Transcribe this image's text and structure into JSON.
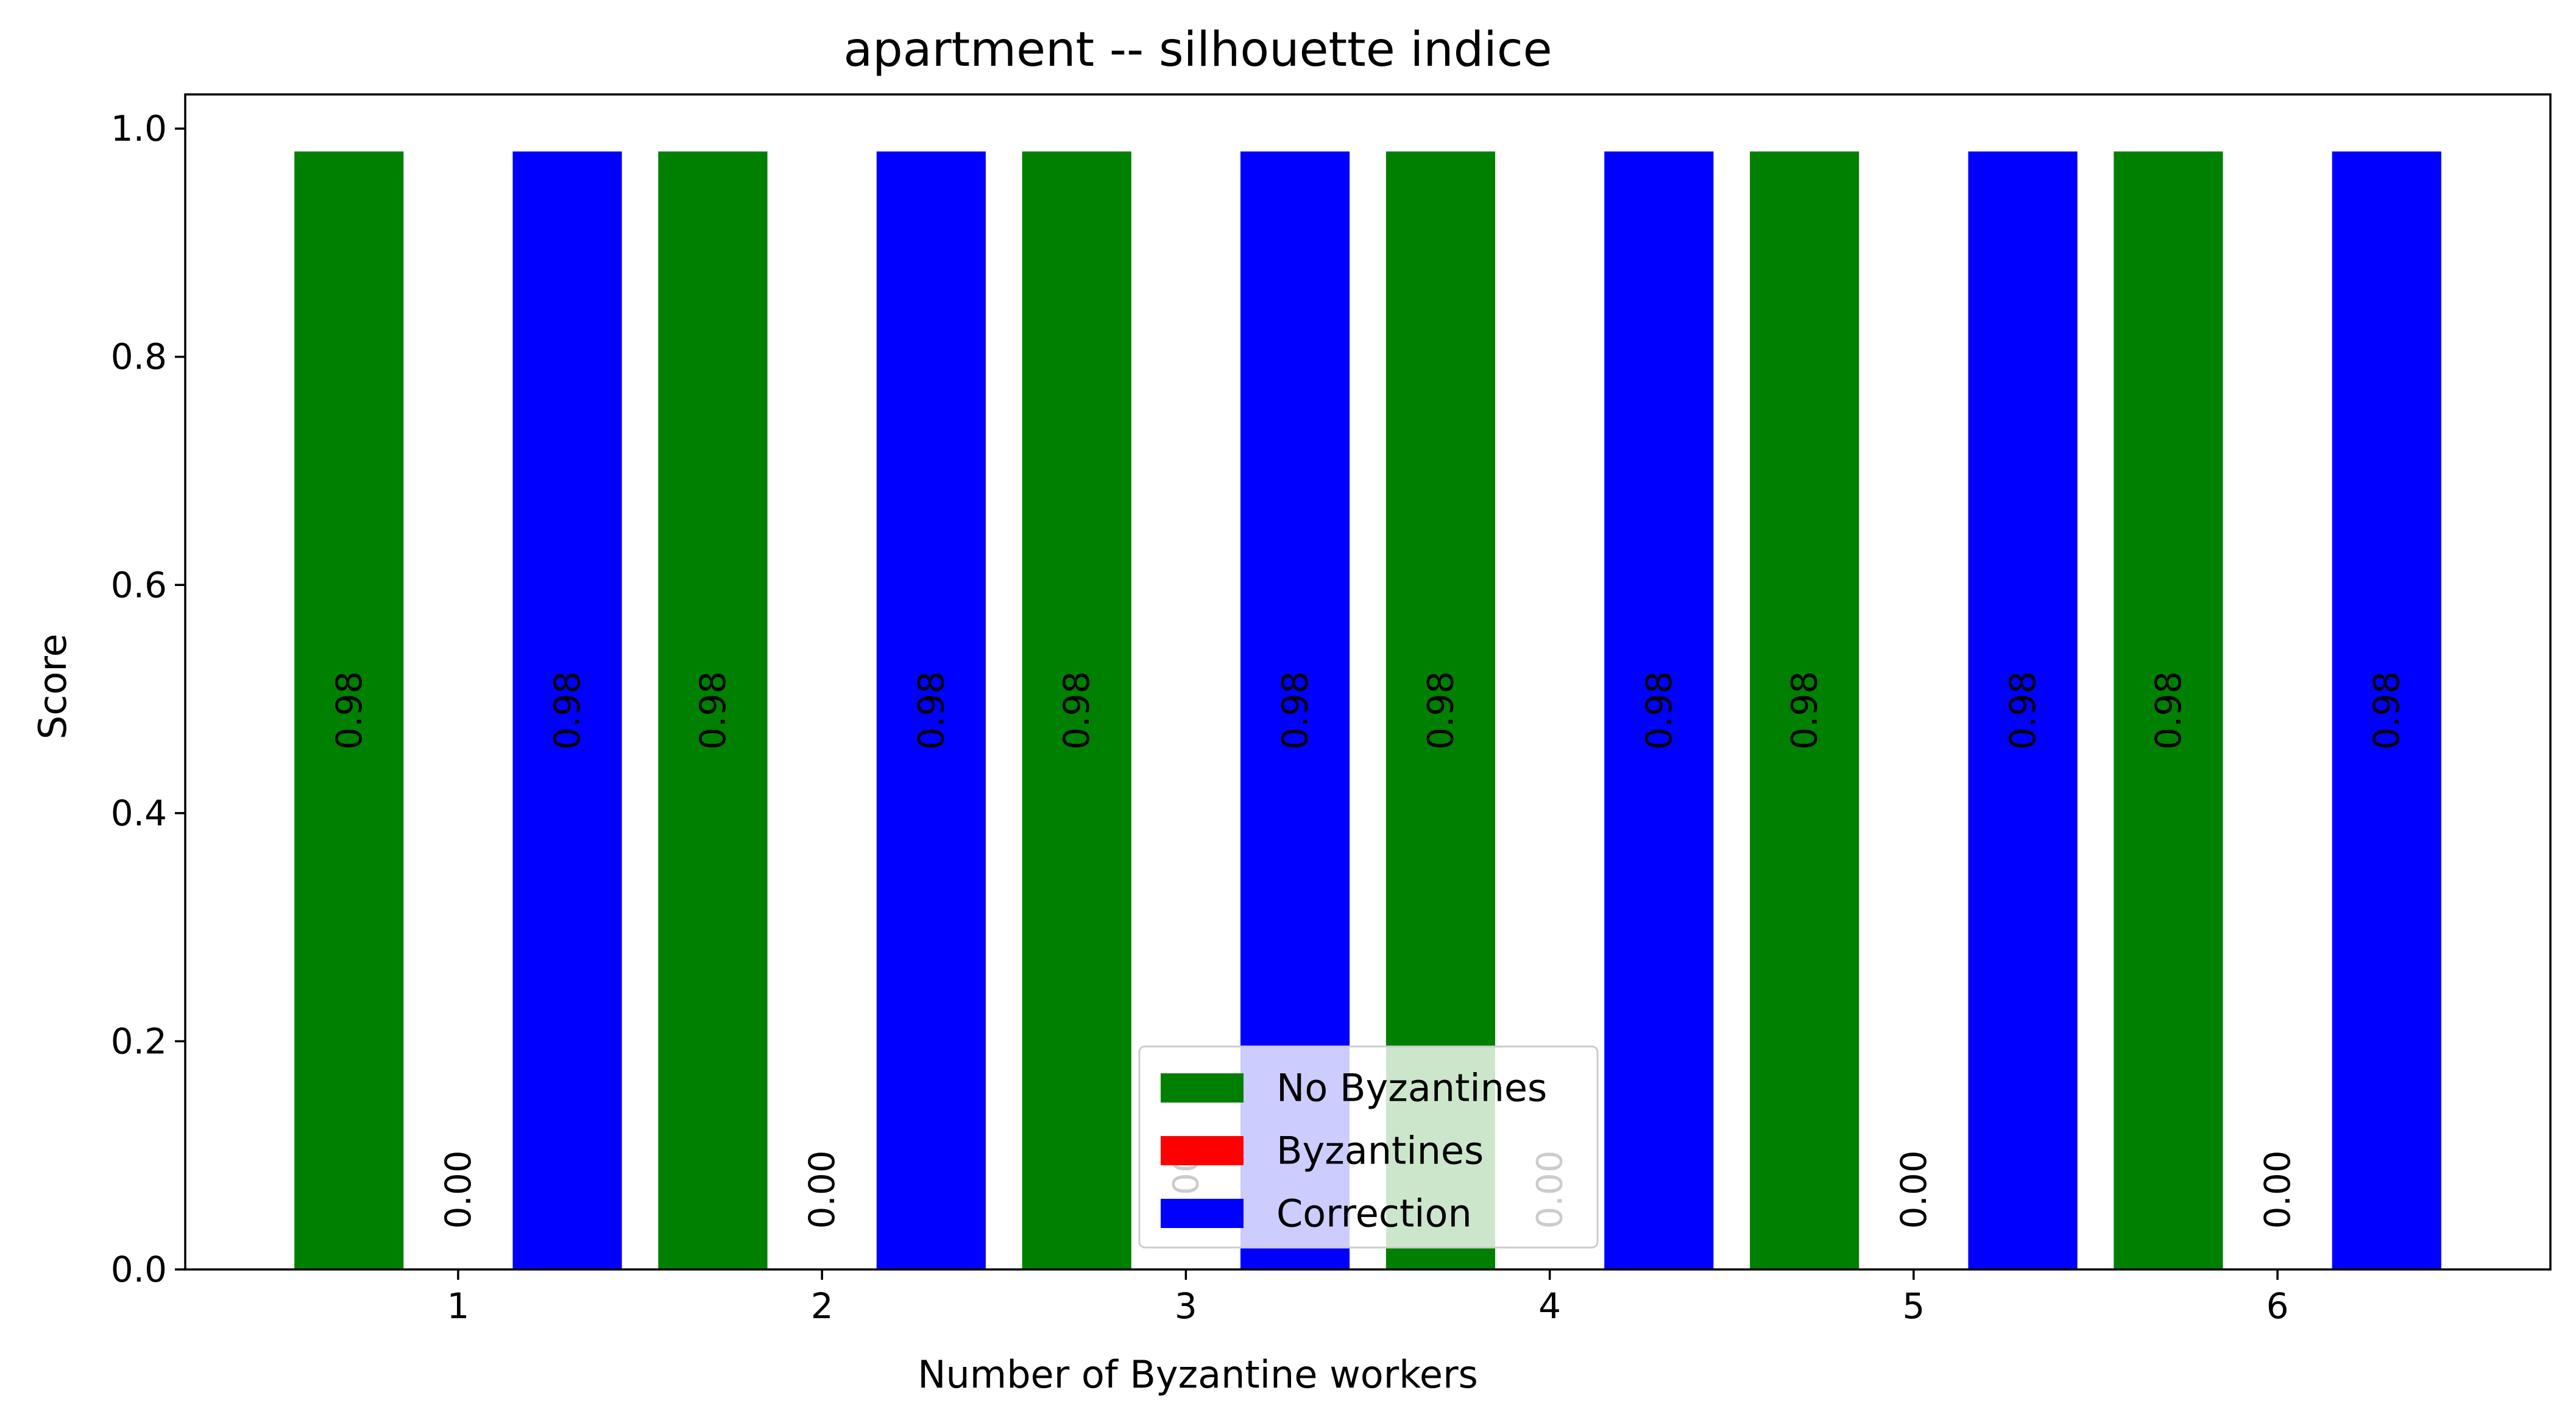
{
  "chart_data": {
    "type": "bar",
    "title": "apartment -- silhouette indice",
    "xlabel": "Number of Byzantine workers",
    "ylabel": "Score",
    "categories": [
      "1",
      "2",
      "3",
      "4",
      "5",
      "6"
    ],
    "x": [
      1,
      2,
      3,
      4,
      5,
      6
    ],
    "series": [
      {
        "name": "No Byzantines",
        "color": "#008000",
        "values": [
          0.98,
          0.98,
          0.98,
          0.98,
          0.98,
          0.98
        ],
        "labels": [
          "0.98",
          "0.98",
          "0.98",
          "0.98",
          "0.98",
          "0.98"
        ]
      },
      {
        "name": "Byzantines",
        "color": "#ff0000",
        "values": [
          0.0,
          0.0,
          0.0,
          0.0,
          0.0,
          0.0
        ],
        "labels": [
          "0.00",
          "0.00",
          "0.00",
          "0.00",
          "0.00",
          "0.00"
        ]
      },
      {
        "name": "Correction",
        "color": "#0000ff",
        "values": [
          0.98,
          0.98,
          0.98,
          0.98,
          0.98,
          0.98
        ],
        "labels": [
          "0.98",
          "0.98",
          "0.98",
          "0.98",
          "0.98",
          "0.98"
        ]
      }
    ],
    "ylim": [
      0,
      1.03
    ],
    "xlim": [
      0.25,
      6.75
    ],
    "yticks": [
      0.0,
      0.2,
      0.4,
      0.6,
      0.8,
      1.0
    ],
    "ytick_labels": [
      "0.0",
      "0.2",
      "0.4",
      "0.6",
      "0.8",
      "1.0"
    ],
    "xticks": [
      1,
      2,
      3,
      4,
      5,
      6
    ],
    "xtick_labels": [
      "1",
      "2",
      "3",
      "4",
      "5",
      "6"
    ],
    "grid": false,
    "legend_position": "bottom-center"
  }
}
